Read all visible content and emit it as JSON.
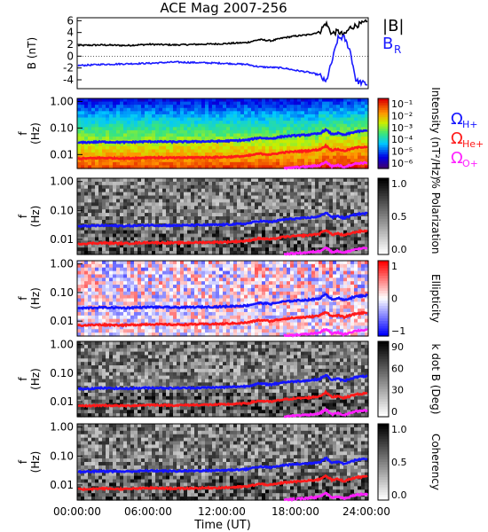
{
  "title": "ACE Mag 2007-256",
  "xlabel": "Time (UT)",
  "x_ticks": [
    "00:00:00",
    "06:00:00",
    "12:00:00",
    "18:00:00",
    "24:00:00"
  ],
  "colors": {
    "B_total": "#000000",
    "B_R": "#1a1aff",
    "H_plus": "#1414ff",
    "He_plus": "#ff1a1a",
    "O_plus": "#ff20ff"
  },
  "chart_data": [
    {
      "type": "line",
      "panel": "B",
      "ylabel": "B (nT)",
      "ylim": [
        -5.5,
        6.5
      ],
      "y_ticks": [
        "6",
        "4",
        "2",
        "0",
        "-2",
        "-4"
      ],
      "x_hours": [
        0,
        2,
        4,
        6,
        8,
        10,
        12,
        14,
        15,
        16,
        17,
        18,
        19,
        20,
        20.5,
        21,
        21.5,
        22,
        22.5,
        23,
        24
      ],
      "series": [
        {
          "name": "|B|",
          "color": "#000000",
          "values": [
            1.8,
            1.9,
            1.8,
            2.0,
            1.9,
            2.0,
            2.1,
            2.3,
            2.8,
            2.6,
            3.1,
            3.4,
            3.6,
            4.1,
            5.6,
            3.8,
            4.2,
            3.5,
            4.8,
            5.2,
            5.8
          ]
        },
        {
          "name": "B_R",
          "color": "#1a1aff",
          "values": [
            -1.6,
            -1.4,
            -1.3,
            -1.2,
            -1.0,
            -1.1,
            -1.2,
            -1.4,
            -1.8,
            -1.9,
            -2.0,
            -2.4,
            -2.7,
            -3.2,
            -4.5,
            -1.0,
            3.0,
            3.2,
            1.0,
            -4.2,
            -4.8
          ]
        }
      ],
      "legend": [
        {
          "label": "|B|",
          "sub": "",
          "color": "#000000"
        },
        {
          "label": "B",
          "sub": "R",
          "color": "#1a1aff"
        }
      ]
    },
    {
      "type": "heatmap",
      "panel": "Intensity",
      "ylabel": "f (Hz)",
      "y_scale": "log",
      "ylim": [
        0.003,
        1.3
      ],
      "y_ticks": [
        "1.00",
        "0.10",
        "0.01"
      ],
      "colorbar_label": "Intensity (nT²/Hz)",
      "colorbar_ticks": [
        "10⁻¹",
        "10⁻²",
        "10⁻³",
        "10⁻⁴",
        "10⁻⁵",
        "10⁻⁶"
      ],
      "legend": [
        {
          "label": "Ω",
          "sub": "H+",
          "color": "#1414ff"
        },
        {
          "label": "Ω",
          "sub": "He+",
          "color": "#ff1a1a"
        },
        {
          "label": "Ω",
          "sub": "O+",
          "color": "#ff20ff"
        }
      ]
    },
    {
      "type": "heatmap",
      "panel": "Polarization",
      "ylabel": "f (Hz)",
      "y_scale": "log",
      "ylim": [
        0.003,
        1.3
      ],
      "y_ticks": [
        "1.00",
        "0.10",
        "0.01"
      ],
      "colorbar_label": "% Polarization",
      "colorbar_ticks": [
        "1.0",
        "0.5",
        "0.0"
      ]
    },
    {
      "type": "heatmap",
      "panel": "Ellipticity",
      "ylabel": "f (Hz)",
      "y_scale": "log",
      "ylim": [
        0.003,
        1.3
      ],
      "y_ticks": [
        "1.00",
        "0.10",
        "0.01"
      ],
      "colorbar_label": "Ellipticity",
      "colorbar_ticks": [
        "1",
        "0",
        "−1"
      ]
    },
    {
      "type": "heatmap",
      "panel": "k dot B",
      "ylabel": "f (Hz)",
      "y_scale": "log",
      "ylim": [
        0.003,
        1.3
      ],
      "y_ticks": [
        "1.00",
        "0.10",
        "0.01"
      ],
      "colorbar_label": "k dot B (Deg)",
      "colorbar_ticks": [
        "90",
        "60",
        "30",
        "0"
      ]
    },
    {
      "type": "heatmap",
      "panel": "Coherency",
      "ylabel": "f (Hz)",
      "y_scale": "log",
      "ylim": [
        0.003,
        1.3
      ],
      "y_ticks": [
        "1.00",
        "0.10",
        "0.01"
      ],
      "colorbar_label": "Coherency",
      "colorbar_ticks": [
        "1.0",
        "0.5",
        "0.0"
      ]
    }
  ],
  "gyrofrequency_lines": {
    "x_hours": [
      0,
      2,
      4,
      6,
      8,
      10,
      12,
      14,
      15,
      16,
      17,
      18,
      19,
      20,
      20.5,
      21,
      21.5,
      22,
      23,
      24
    ],
    "H_plus": [
      0.028,
      0.03,
      0.029,
      0.031,
      0.03,
      0.031,
      0.032,
      0.035,
      0.043,
      0.04,
      0.048,
      0.052,
      0.055,
      0.062,
      0.085,
      0.058,
      0.064,
      0.054,
      0.073,
      0.08
    ],
    "He_plus": [
      0.007,
      0.0075,
      0.0072,
      0.0078,
      0.0075,
      0.0078,
      0.008,
      0.0088,
      0.0108,
      0.01,
      0.012,
      0.013,
      0.0138,
      0.0155,
      0.0212,
      0.0145,
      0.016,
      0.0135,
      0.0182,
      0.02
    ],
    "O_plus": [
      null,
      null,
      null,
      null,
      null,
      null,
      null,
      null,
      null,
      null,
      0.003,
      0.0033,
      0.0035,
      0.0039,
      0.0053,
      0.0036,
      0.004,
      0.0034,
      0.0046,
      0.005
    ]
  }
}
